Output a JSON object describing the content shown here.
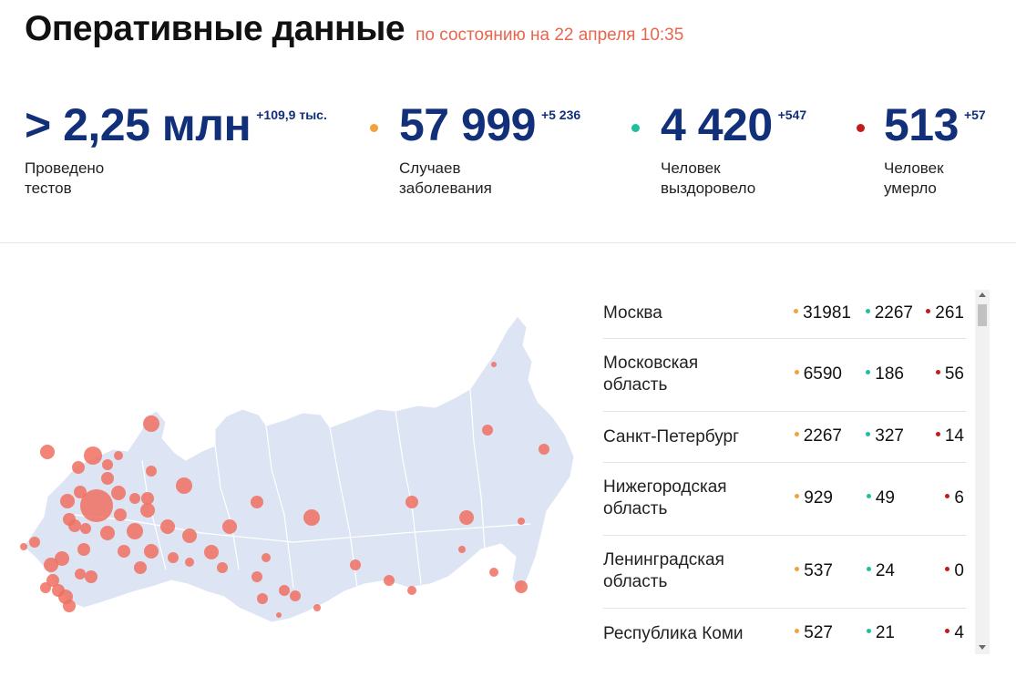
{
  "header": {
    "title": "Оперативные данные",
    "as_of": "по состоянию на 22 апреля 10:35"
  },
  "stats": [
    {
      "value": "> 2,25 млн",
      "delta": "+109,9 тыс.",
      "label": "Проведено\nтестов",
      "dot_color": ""
    },
    {
      "value": "57 999",
      "delta": "+5 236",
      "label": "Случаев\nзаболевания",
      "dot_color": "#f0a23c"
    },
    {
      "value": "4 420",
      "delta": "+547",
      "label": "Человек\nвыздоровело",
      "dot_color": "#1fbf9c"
    },
    {
      "value": "513",
      "delta": "+57",
      "label": "Человек\nумерло",
      "dot_color": "#c41a1a"
    }
  ],
  "colors": {
    "cases": "#f0a23c",
    "recovered": "#1fbf9c",
    "deaths": "#c41a1a",
    "map_land": "#dde4f3",
    "map_bubble": "#f07060"
  },
  "regions": [
    {
      "name": "Москва",
      "cases": "31981",
      "recovered": "2267",
      "deaths": "261"
    },
    {
      "name": "Московская\nобласть",
      "cases": "6590",
      "recovered": "186",
      "deaths": "56"
    },
    {
      "name": "Санкт-Петербург",
      "cases": "2267",
      "recovered": "327",
      "deaths": "14"
    },
    {
      "name": "Нижегородская\nобласть",
      "cases": "929",
      "recovered": "49",
      "deaths": "6"
    },
    {
      "name": "Ленинградская\nобласть",
      "cases": "537",
      "recovered": "24",
      "deaths": "0"
    },
    {
      "name": "Республика Коми",
      "cases": "527",
      "recovered": "21",
      "deaths": "4"
    }
  ]
}
